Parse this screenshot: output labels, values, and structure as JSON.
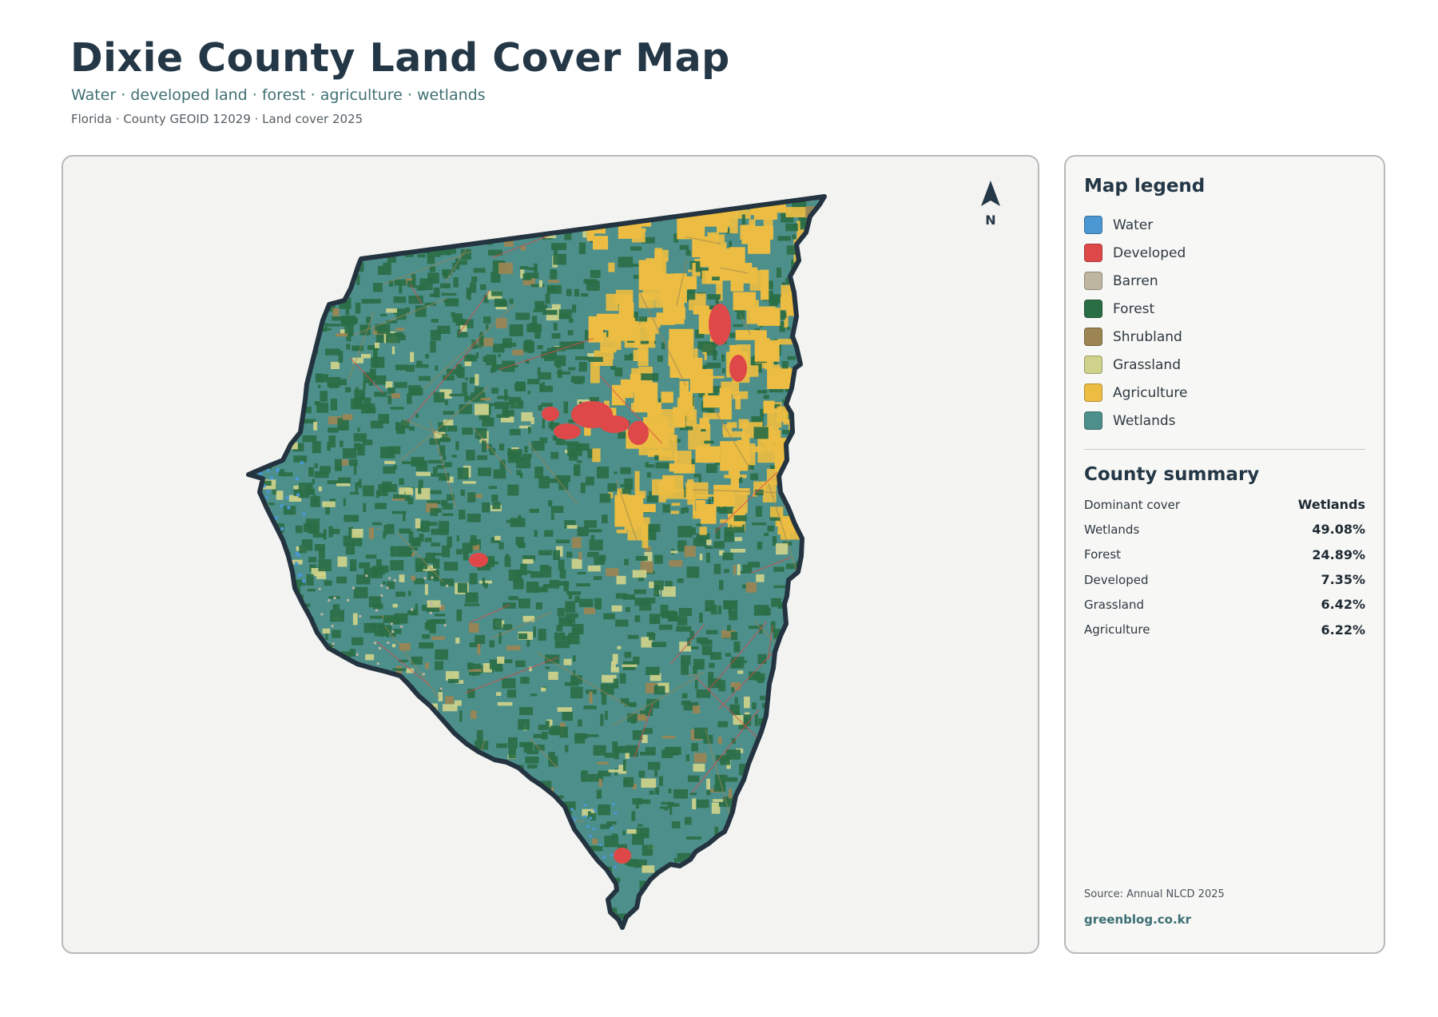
{
  "header": {
    "title": "Dixie County Land Cover Map",
    "subtitle": "Water · developed land · forest · agriculture · wetlands",
    "meta": "Florida · County GEOID 12029 · Land cover 2025"
  },
  "map": {
    "north_label": "N",
    "colors": {
      "background": "#f3f3f2",
      "outline": "#23333f",
      "wetlands": "#4d8f8b",
      "forest": "#2a6e45",
      "agriculture": "#ecbd42",
      "developed": "#de4848",
      "grassland": "#cfd28a",
      "shrubland": "#9c8553",
      "water": "#4a97d2",
      "barren": "#beb6a0"
    }
  },
  "legend": {
    "title": "Map legend",
    "items": [
      {
        "label": "Water",
        "color": "#4a97d2"
      },
      {
        "label": "Developed",
        "color": "#de4848"
      },
      {
        "label": "Barren",
        "color": "#beb6a0"
      },
      {
        "label": "Forest",
        "color": "#2a6e45"
      },
      {
        "label": "Shrubland",
        "color": "#9c8553"
      },
      {
        "label": "Grassland",
        "color": "#cfd28a"
      },
      {
        "label": "Agriculture",
        "color": "#ecbd42"
      },
      {
        "label": "Wetlands",
        "color": "#4d8f8b"
      }
    ]
  },
  "summary": {
    "title": "County summary",
    "rows": [
      {
        "key": "Dominant cover",
        "value": "Wetlands"
      },
      {
        "key": "Wetlands",
        "value": "49.08%"
      },
      {
        "key": "Forest",
        "value": "24.89%"
      },
      {
        "key": "Developed",
        "value": "7.35%"
      },
      {
        "key": "Grassland",
        "value": "6.42%"
      },
      {
        "key": "Agriculture",
        "value": "6.22%"
      }
    ]
  },
  "footer": {
    "source": "Source: Annual NLCD 2025",
    "site": "greenblog.co.kr"
  }
}
